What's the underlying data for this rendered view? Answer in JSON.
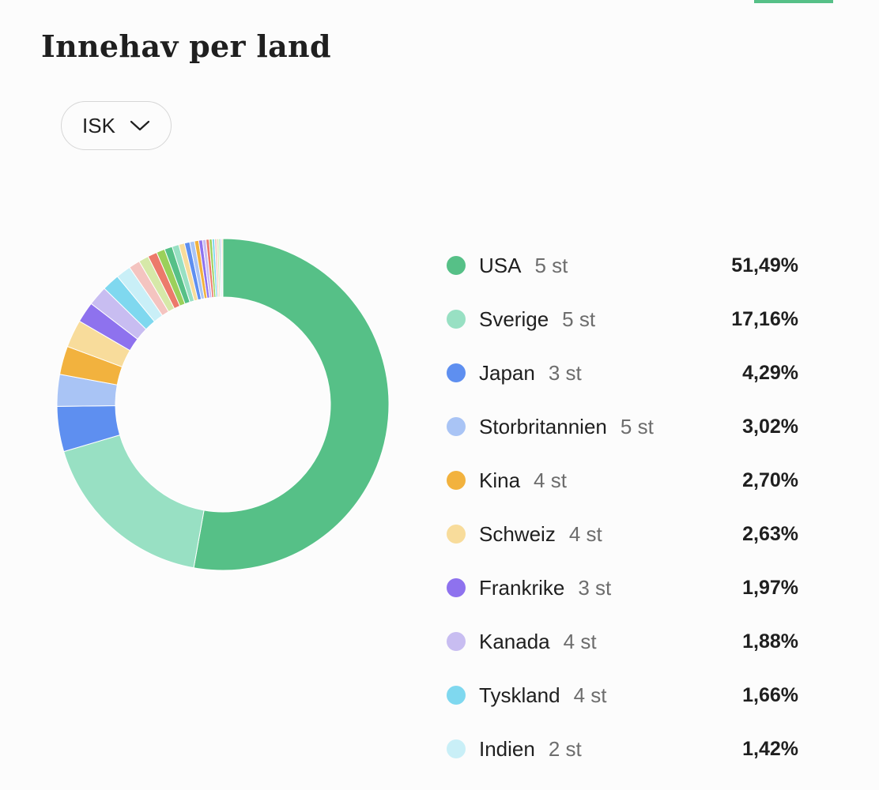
{
  "header": {
    "title": "Innehav per land",
    "accent_color": "#56c087"
  },
  "account_select": {
    "value": "ISK",
    "icon": "chevron-down-icon"
  },
  "chart_data": {
    "type": "pie",
    "style": "donut",
    "legend_placement": "right",
    "categories": [
      "USA",
      "Sverige",
      "Japan",
      "Storbritannien",
      "Kina",
      "Schweiz",
      "Frankrike",
      "Kanada",
      "Tyskland",
      "Indien"
    ],
    "counts": [
      "5 st",
      "5 st",
      "3 st",
      "5 st",
      "4 st",
      "4 st",
      "3 st",
      "4 st",
      "4 st",
      "2 st"
    ],
    "value_labels": [
      "51,49%",
      "17,16%",
      "4,29%",
      "3,02%",
      "2,70%",
      "2,63%",
      "1,97%",
      "1,88%",
      "1,66%",
      "1,42%"
    ],
    "values": [
      51.49,
      17.16,
      4.29,
      3.02,
      2.7,
      2.63,
      1.97,
      1.88,
      1.66,
      1.42
    ],
    "colors": [
      "#56c087",
      "#98e0c3",
      "#5e8ff0",
      "#a9c4f5",
      "#f2b23e",
      "#f8dc9b",
      "#8e72ee",
      "#c8bdf1",
      "#7fd8ef",
      "#c9eff7"
    ],
    "unlisted_slices": [
      {
        "value": 1.06,
        "color": "#f4c4c0"
      },
      {
        "value": 0.95,
        "color": "#d6e8a8"
      },
      {
        "value": 0.88,
        "color": "#ec7a6b"
      },
      {
        "value": 0.8,
        "color": "#9bd05a"
      },
      {
        "value": 0.75,
        "color": "#56c087"
      },
      {
        "value": 0.65,
        "color": "#98e0c3"
      },
      {
        "value": 0.55,
        "color": "#f8dc9b"
      },
      {
        "value": 0.5,
        "color": "#5e8ff0"
      },
      {
        "value": 0.45,
        "color": "#a9c4f5"
      },
      {
        "value": 0.4,
        "color": "#f2b23e"
      },
      {
        "value": 0.36,
        "color": "#8e72ee"
      },
      {
        "value": 0.33,
        "color": "#c8bdf1"
      },
      {
        "value": 0.3,
        "color": "#ec7a6b"
      },
      {
        "value": 0.27,
        "color": "#9bd05a"
      },
      {
        "value": 0.24,
        "color": "#7fd8ef"
      },
      {
        "value": 0.21,
        "color": "#f4c4c0"
      },
      {
        "value": 0.18,
        "color": "#d6e8a8"
      },
      {
        "value": 0.15,
        "color": "#98e0c3"
      },
      {
        "value": 0.13,
        "color": "#c8bdf1"
      },
      {
        "value": 0.11,
        "color": "#f8dc9b"
      }
    ]
  }
}
